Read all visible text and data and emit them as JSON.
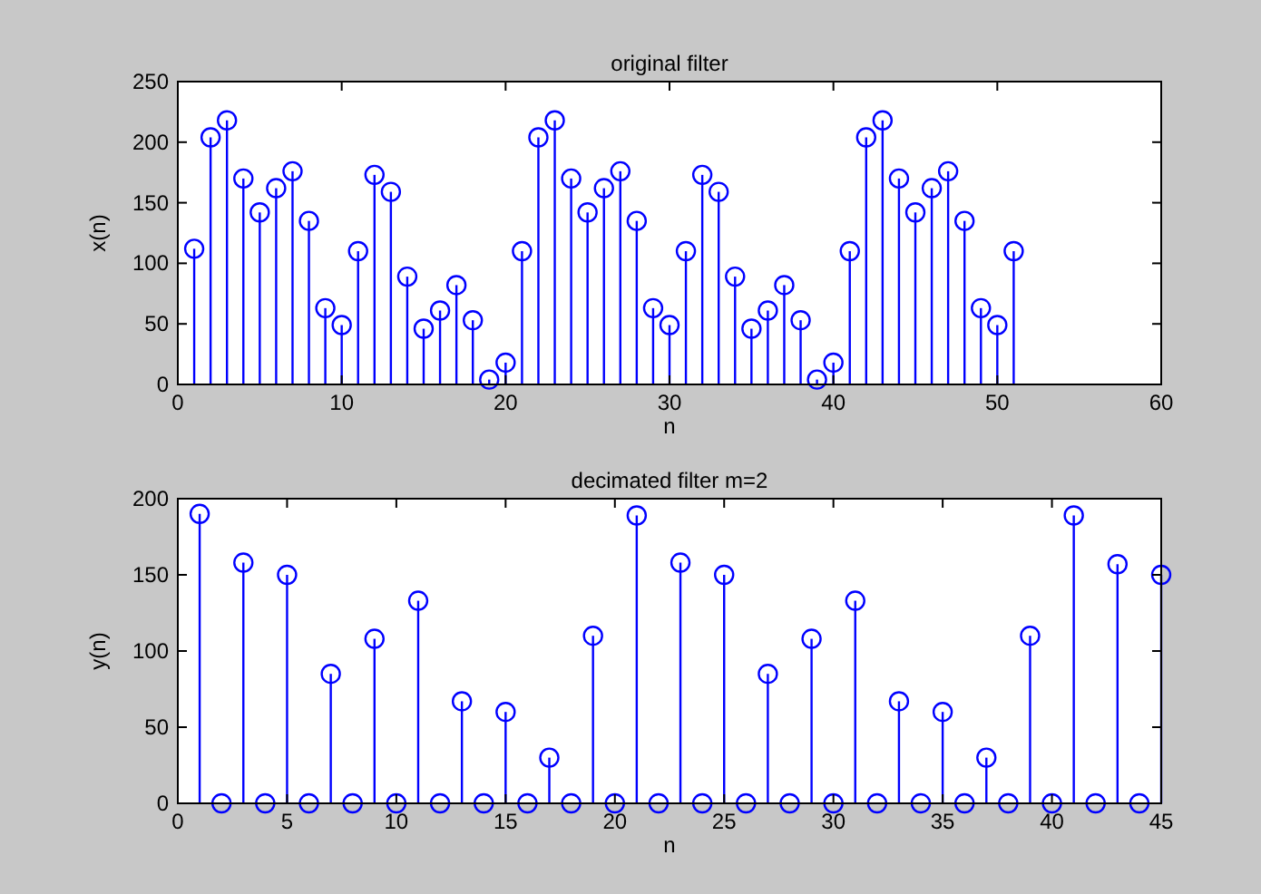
{
  "chart_data": [
    {
      "type": "lollipop",
      "title": "original filter",
      "xlabel": "n",
      "ylabel": "x(n)",
      "marker": "circle",
      "x": [
        1,
        2,
        3,
        4,
        5,
        6,
        7,
        8,
        9,
        10,
        11,
        12,
        13,
        14,
        15,
        16,
        17,
        18,
        19,
        20,
        21,
        22,
        23,
        24,
        25,
        26,
        27,
        28,
        29,
        30,
        31,
        32,
        33,
        34,
        35,
        36,
        37,
        38,
        39,
        40,
        41,
        42,
        43,
        44,
        45,
        46,
        47,
        48,
        49,
        50,
        51
      ],
      "series": [
        {
          "color": "#0000ff",
          "values": [
            112,
            204,
            218,
            170,
            142,
            162,
            176,
            135,
            63,
            49,
            110,
            173,
            159,
            89,
            46,
            61,
            82,
            53,
            4,
            18,
            110,
            204,
            218,
            170,
            142,
            162,
            176,
            135,
            63,
            49,
            110,
            173,
            159,
            89,
            46,
            61,
            82,
            53,
            4,
            18,
            110,
            204,
            218,
            170,
            142,
            162,
            176,
            135,
            63,
            49,
            110
          ]
        }
      ],
      "xlim": [
        0,
        60
      ],
      "xticks": [
        0,
        10,
        20,
        30,
        40,
        50,
        60
      ],
      "ylim": [
        0,
        250
      ],
      "yticks": [
        0,
        50,
        100,
        150,
        200,
        250
      ]
    },
    {
      "type": "lollipop",
      "title": "decimated filter m=2",
      "xlabel": "n",
      "ylabel": "y(n)",
      "marker": "circle",
      "x": [
        1,
        2,
        3,
        4,
        5,
        6,
        7,
        8,
        9,
        10,
        11,
        12,
        13,
        14,
        15,
        16,
        17,
        18,
        19,
        20,
        21,
        22,
        23,
        24,
        25,
        26,
        27,
        28,
        29,
        30,
        31,
        32,
        33,
        34,
        35,
        36,
        37,
        38,
        39,
        40,
        41,
        42,
        43,
        44,
        45
      ],
      "series": [
        {
          "color": "#0000ff",
          "values": [
            190,
            0,
            158,
            0,
            150,
            0,
            85,
            0,
            108,
            0,
            133,
            0,
            67,
            0,
            60,
            0,
            30,
            0,
            110,
            0,
            189,
            0,
            158,
            0,
            150,
            0,
            85,
            0,
            108,
            0,
            133,
            0,
            67,
            0,
            60,
            0,
            30,
            0,
            110,
            0,
            189,
            0,
            157,
            0,
            150
          ]
        }
      ],
      "xlim": [
        0,
        45
      ],
      "xticks": [
        0,
        5,
        10,
        15,
        20,
        25,
        30,
        35,
        40,
        45
      ],
      "ylim": [
        0,
        200
      ],
      "yticks": [
        0,
        50,
        100,
        150,
        200
      ]
    }
  ]
}
